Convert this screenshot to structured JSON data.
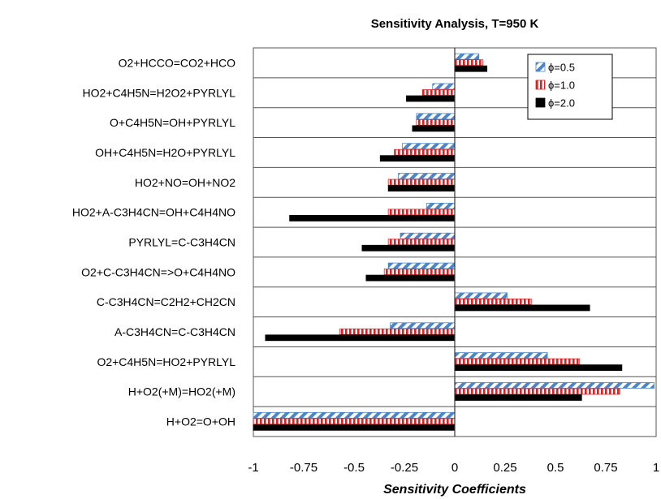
{
  "chart_data": {
    "type": "bar",
    "orientation": "horizontal",
    "title": "Sensitivity Analysis, T=950 K",
    "xlabel": "Sensitivity Coefficients",
    "ylabel": "",
    "xlim": [
      -1,
      1
    ],
    "xticks": [
      "-1",
      "-0.75",
      "-0.5",
      "-0.25",
      "0",
      "0.25",
      "0.5",
      "0.75",
      "1"
    ],
    "legend_position": "top-right",
    "grid": "horizontal separators between categories",
    "categories": [
      "O2+HCCO=CO2+HCO",
      "HO2+C4H5N=H2O2+PYRLYL",
      "O+C4H5N=OH+PYRLYL",
      "OH+C4H5N=H2O+PYRLYL",
      "HO2+NO=OH+NO2",
      "HO2+A-C3H4CN=OH+C4H4NO",
      "PYRLYL=C-C3H4CN",
      "O2+C-C3H4CN=>O+C4H4NO",
      "C-C3H4CN=C2H2+CH2CN",
      "A-C3H4CN=C-C3H4CN",
      "O2+C4H5N=HO2+PYRLYL",
      "H+O2(+M)=HO2(+M)",
      "H+O2=O+OH"
    ],
    "series": [
      {
        "name": "ϕ=0.5",
        "style": "diagonal-stripe",
        "color": "#4a86c8",
        "values": [
          0.12,
          -0.11,
          -0.19,
          -0.26,
          -0.28,
          -0.14,
          -0.27,
          -0.33,
          0.26,
          -0.32,
          0.46,
          0.99,
          -1.0
        ]
      },
      {
        "name": "ϕ=1.0",
        "style": "vertical-stripe",
        "color": "#e02020",
        "values": [
          0.14,
          -0.16,
          -0.19,
          -0.3,
          -0.33,
          -0.33,
          -0.33,
          -0.35,
          0.38,
          -0.57,
          0.62,
          0.82,
          -1.0
        ]
      },
      {
        "name": "ϕ=2.0",
        "style": "solid",
        "color": "#000000",
        "values": [
          0.16,
          -0.24,
          -0.21,
          -0.37,
          -0.33,
          -0.82,
          -0.46,
          -0.44,
          0.67,
          -0.94,
          0.83,
          0.63,
          -1.0
        ]
      }
    ]
  }
}
